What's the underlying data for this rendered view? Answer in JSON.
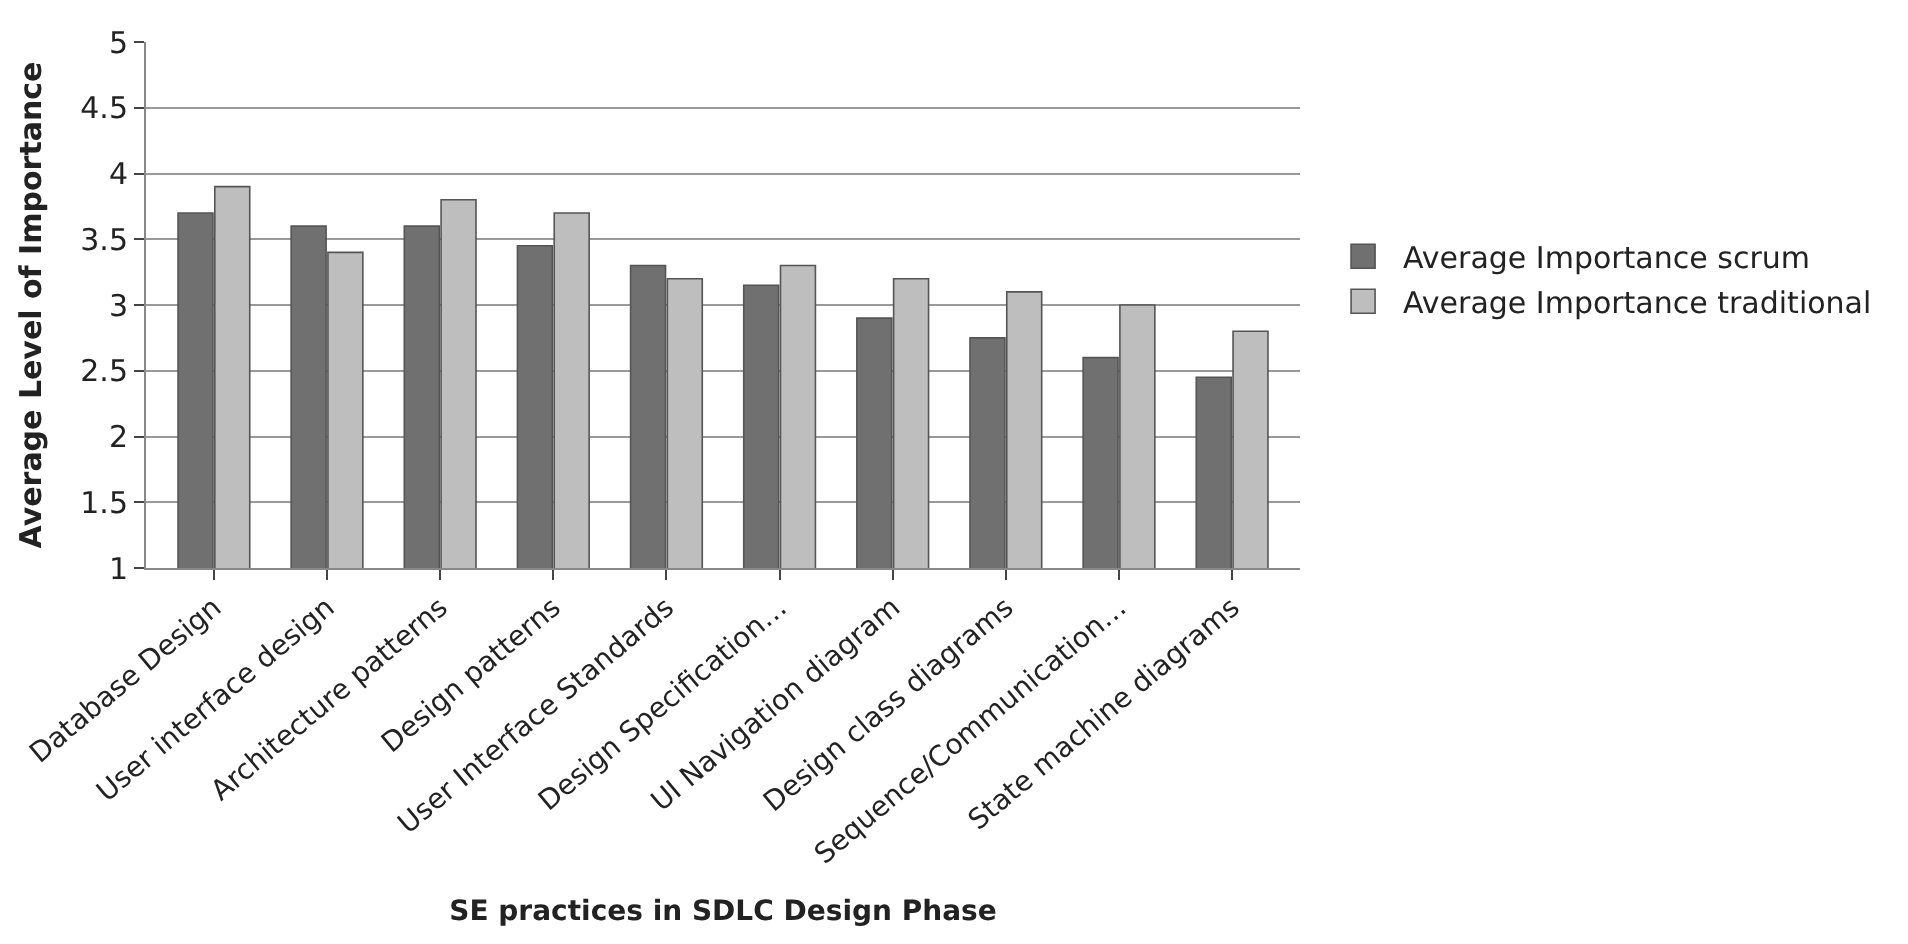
{
  "chart_data": {
    "type": "bar",
    "xlabel": "SE practices in SDLC Design Phase",
    "ylabel": "Average Level of Importance",
    "categories": [
      "Database Design",
      "User interface design",
      "Architecture patterns",
      "Design patterns",
      "User Interface Standards",
      "Design Specification…",
      "UI Navigation diagram",
      "Design class diagrams",
      "Sequence/Communication…",
      "State machine diagrams"
    ],
    "series": [
      {
        "name": "Average Importance scrum",
        "color": "#707070",
        "values": [
          3.7,
          3.6,
          3.6,
          3.45,
          3.3,
          3.15,
          2.9,
          2.75,
          2.6,
          2.45
        ]
      },
      {
        "name": "Average Importance traditional",
        "color": "#bebebe",
        "values": [
          3.9,
          3.4,
          3.8,
          3.7,
          3.2,
          3.3,
          3.2,
          3.1,
          3.0,
          2.8
        ]
      }
    ],
    "ylim": [
      1,
      5
    ],
    "yticks": [
      1,
      1.5,
      2,
      2.5,
      3,
      3.5,
      4,
      4.5,
      5
    ],
    "grid": "y",
    "legend": "right"
  }
}
